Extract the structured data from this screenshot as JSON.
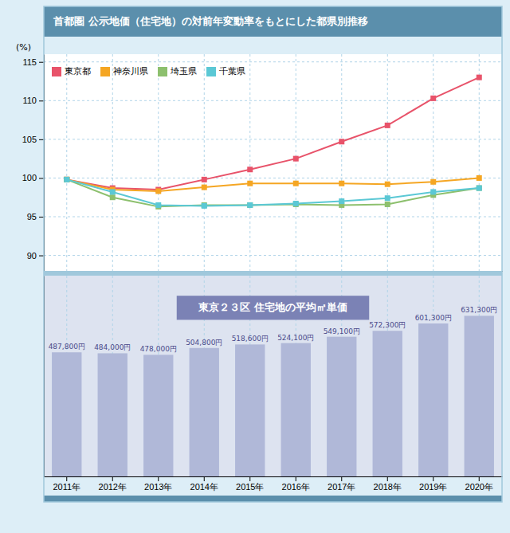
{
  "chart_data": [
    {
      "type": "line",
      "title": "首都圏 公示地価（住宅地）の対前年変動率をもとにした都県別推移",
      "y_label": "(%)",
      "categories": [
        "2011年",
        "2012年",
        "2013年",
        "2014年",
        "2015年",
        "2016年",
        "2017年",
        "2018年",
        "2019年",
        "2020年"
      ],
      "series": [
        {
          "name": "東京都",
          "color": "#e8536a",
          "marker": "square",
          "values": [
            99.8,
            98.7,
            98.5,
            99.8,
            101.1,
            102.5,
            104.7,
            106.8,
            110.3,
            113.0
          ]
        },
        {
          "name": "神奈川県",
          "color": "#f5a623",
          "marker": "square",
          "values": [
            99.8,
            98.5,
            98.3,
            98.8,
            99.3,
            99.3,
            99.3,
            99.2,
            99.5,
            100.0
          ]
        },
        {
          "name": "埼玉県",
          "color": "#8dc06e",
          "marker": "square",
          "values": [
            99.8,
            97.5,
            96.3,
            96.5,
            96.5,
            96.6,
            96.5,
            96.6,
            97.8,
            98.7
          ]
        },
        {
          "name": "千葉県",
          "color": "#5bc8d5",
          "marker": "square",
          "values": [
            99.8,
            98.2,
            96.5,
            96.4,
            96.5,
            96.7,
            97.0,
            97.4,
            98.2,
            98.7
          ]
        }
      ],
      "ylim": [
        88,
        116
      ],
      "yticks": [
        90,
        95,
        100,
        105,
        110,
        115
      ],
      "grid": true,
      "legend": "upper left",
      "tick_labels": "y"
    },
    {
      "type": "bar",
      "title": "東京２３区 住宅地の平均㎡単価",
      "categories": [
        "2011年",
        "2012年",
        "2013年",
        "2014年",
        "2015年",
        "2016年",
        "2017年",
        "2018年",
        "2019年",
        "2020年"
      ],
      "values": [
        487800,
        484000,
        478000,
        504800,
        518600,
        524100,
        549100,
        572300,
        601300,
        631300
      ],
      "value_labels": [
        "487,800円",
        "484,000円",
        "478,000円",
        "504,800円",
        "518,600円",
        "524,100円",
        "549,100円",
        "572,300円",
        "601,300円",
        "631,300円"
      ],
      "color": "#b0b8d8",
      "ylim": [
        0,
        789125
      ],
      "grid": true,
      "data_labels": true,
      "tick_labels": "x"
    }
  ]
}
